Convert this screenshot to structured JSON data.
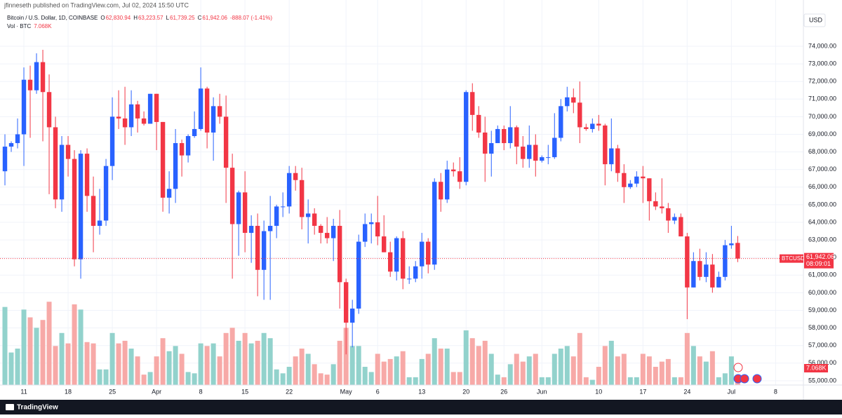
{
  "chart_data": {
    "type": "candlestick",
    "header": "jfinneseth published on TradingView.com, Jul 02, 2024 15:50 UTC",
    "legend": {
      "symbol": "Bitcoin / U.S. Dollar, 1D, COINBASE",
      "o": "O",
      "o_value": "62,830.94",
      "h": "H",
      "h_value": "63,223.57",
      "l": "L",
      "l_value": "61,739.25",
      "c": "C",
      "c_value": "61,942.06",
      "change": "-888.07 (-1.41%)",
      "vol": "Vol · BTC",
      "vol_value": "7.068K"
    },
    "currency": "USD",
    "price_tag": {
      "symbol": "BTCUSD",
      "price": "61,942.06",
      "countdown": "08:09:01"
    },
    "volume_tag": "7.068K",
    "brand": "TradingView",
    "up_color": "#2962ff",
    "down_color": "#f23645",
    "up_volume_color": "#92d2cc",
    "down_volume_color": "#f7a9a7",
    "grid": true,
    "xlim": [
      -0.78,
      126.4
    ],
    "ylim": [
      54757,
      76629
    ],
    "volume_lim": [
      0,
      90
    ],
    "last_price": 61942.06,
    "xticks": [
      {
        "value": 3,
        "label": "11"
      },
      {
        "value": 10,
        "label": "18"
      },
      {
        "value": 17,
        "label": "25"
      },
      {
        "value": 24,
        "label": "Apr"
      },
      {
        "value": 31,
        "label": "8"
      },
      {
        "value": 38,
        "label": "15"
      },
      {
        "value": 45,
        "label": "22"
      },
      {
        "value": 54,
        "label": "May"
      },
      {
        "value": 59,
        "label": "6"
      },
      {
        "value": 66,
        "label": "13"
      },
      {
        "value": 73,
        "label": "20"
      },
      {
        "value": 79,
        "label": "26"
      },
      {
        "value": 85,
        "label": "Jun"
      },
      {
        "value": 94,
        "label": "10"
      },
      {
        "value": 101,
        "label": "17"
      },
      {
        "value": 108,
        "label": "24"
      },
      {
        "value": 115,
        "label": "Jul"
      },
      {
        "value": 122,
        "label": "8"
      }
    ],
    "yticks": [
      {
        "value": 55000,
        "label": "55,000.00"
      },
      {
        "value": 56000,
        "label": "56,000.00"
      },
      {
        "value": 57000,
        "label": "57,000.00"
      },
      {
        "value": 58000,
        "label": "58,000.00"
      },
      {
        "value": 59000,
        "label": "59,000.00"
      },
      {
        "value": 60000,
        "label": "60,000.00"
      },
      {
        "value": 61000,
        "label": "61,000.00"
      },
      {
        "value": 62000,
        "label": "62,000.00"
      },
      {
        "value": 63000,
        "label": "63,000.00"
      },
      {
        "value": 64000,
        "label": "64,000.00"
      },
      {
        "value": 65000,
        "label": "65,000.00"
      },
      {
        "value": 66000,
        "label": "66,000.00"
      },
      {
        "value": 67000,
        "label": "67,000.00"
      },
      {
        "value": 68000,
        "label": "68,000.00"
      },
      {
        "value": 69000,
        "label": "69,000.00"
      },
      {
        "value": 70000,
        "label": "70,000.00"
      },
      {
        "value": 71000,
        "label": "71,000.00"
      },
      {
        "value": 72000,
        "label": "72,000.00"
      },
      {
        "value": 73000,
        "label": "73,000.00"
      },
      {
        "value": 74000,
        "label": "74,000.00"
      }
    ],
    "open": [
      66900,
      68300,
      68500,
      69000,
      72100,
      71500,
      73100,
      71400,
      69400,
      65300,
      68400,
      67600,
      61900,
      67900,
      65500,
      63800,
      64100,
      67200,
      70000,
      69900,
      69400,
      70700,
      69900,
      69600,
      71300,
      69700,
      65400,
      65900,
      68500,
      67800,
      68900,
      69300,
      71600,
      69100,
      70600,
      70000,
      67100,
      63900,
      65700,
      63400,
      63800,
      61300,
      63500,
      63800,
      64900,
      64900,
      66800,
      66400,
      64300,
      64500,
      63800,
      63400,
      63100,
      63800,
      60600,
      58300,
      59100,
      62900,
      63900,
      64000,
      63200,
      62300,
      61200,
      63100,
      60800,
      60800,
      61500,
      62900,
      61600,
      66300,
      65300,
      67000,
      66900,
      66300,
      71400,
      70100,
      69100,
      67900,
      68500,
      69300,
      68500,
      69400,
      68300,
      67600,
      68400,
      67500,
      67700,
      67700,
      68800,
      70600,
      71100,
      70800,
      69400,
      69300,
      69600,
      69500,
      67300,
      68200,
      66800,
      66000,
      66200,
      66600,
      66500,
      65200,
      64900,
      64800,
      64100,
      64300,
      63200,
      60300,
      61800,
      60900,
      61600,
      60300,
      60900,
      62700,
      62830.94
    ],
    "high": [
      69000,
      68600,
      69900,
      72800,
      72900,
      73600,
      73800,
      72400,
      70000,
      68900,
      68900,
      68100,
      68100,
      68200,
      66600,
      65900,
      67600,
      71100,
      71500,
      71700,
      71500,
      70900,
      70300,
      71300,
      71300,
      69700,
      66900,
      69300,
      68700,
      69000,
      70300,
      72800,
      71700,
      71100,
      71300,
      71200,
      67900,
      65800,
      66900,
      64400,
      64500,
      64100,
      65500,
      65000,
      65700,
      67200,
      67200,
      67100,
      65300,
      64800,
      63900,
      64300,
      64200,
      64700,
      60800,
      59600,
      63300,
      64500,
      64500,
      65500,
      64400,
      62900,
      63200,
      63500,
      61500,
      61800,
      63400,
      63100,
      66500,
      66800,
      67500,
      67400,
      67700,
      71500,
      71900,
      70600,
      70000,
      69200,
      69500,
      69500,
      70600,
      69500,
      68900,
      69500,
      69000,
      67800,
      68400,
      70200,
      71000,
      71700,
      71600,
      72000,
      69600,
      69900,
      70100,
      69600,
      69900,
      68400,
      67300,
      66400,
      66900,
      67200,
      66500,
      65700,
      66500,
      65100,
      64500,
      64500,
      63400,
      62300,
      62500,
      62300,
      62200,
      61200,
      63000,
      63800,
      63223.57
    ],
    "low": [
      66100,
      68000,
      68200,
      67200,
      68800,
      71300,
      68600,
      65600,
      64800,
      64600,
      66600,
      61500,
      60800,
      64600,
      62300,
      63300,
      63800,
      66400,
      69300,
      68400,
      68900,
      69100,
      69500,
      69600,
      68100,
      64600,
      64500,
      65100,
      66600,
      67400,
      68800,
      69200,
      68200,
      67500,
      69600,
      65100,
      60800,
      62100,
      62300,
      61700,
      59800,
      59600,
      59600,
      63100,
      64300,
      64500,
      65800,
      63600,
      62800,
      63300,
      62800,
      62800,
      61800,
      59100,
      56500,
      56900,
      58800,
      62600,
      62800,
      62700,
      62300,
      60900,
      60700,
      60200,
      60500,
      60600,
      60800,
      61100,
      61300,
      64600,
      65100,
      66600,
      65900,
      66100,
      69200,
      68800,
      66300,
      66600,
      68500,
      68100,
      68200,
      67300,
      67100,
      67100,
      66600,
      67400,
      67300,
      67600,
      68600,
      70300,
      70200,
      68500,
      69200,
      69100,
      69200,
      66100,
      66900,
      66300,
      65100,
      65900,
      66000,
      65100,
      64100,
      64700,
      64500,
      63400,
      63900,
      63200,
      58500,
      60300,
      60700,
      60600,
      60000,
      60300,
      60700,
      62500,
      61739.25
    ],
    "close": [
      68300,
      68500,
      69000,
      72100,
      71500,
      73100,
      71400,
      69400,
      65300,
      68400,
      67600,
      61900,
      67900,
      65500,
      63800,
      64100,
      67200,
      70000,
      69900,
      69400,
      70700,
      69900,
      69600,
      71300,
      69700,
      65400,
      65900,
      68500,
      67800,
      68900,
      69300,
      71600,
      69100,
      70600,
      70000,
      67100,
      63900,
      65700,
      63400,
      63800,
      61300,
      63500,
      63800,
      64900,
      64900,
      66800,
      66400,
      64300,
      64500,
      63800,
      63400,
      63100,
      63800,
      60600,
      58300,
      59100,
      62900,
      63900,
      64000,
      63200,
      62300,
      61200,
      63100,
      60800,
      60800,
      61500,
      62900,
      61600,
      66300,
      65300,
      67000,
      66900,
      66300,
      71400,
      70100,
      69100,
      67900,
      68500,
      69300,
      68500,
      69400,
      68300,
      67600,
      68400,
      67500,
      67700,
      67700,
      68800,
      70600,
      71100,
      70800,
      69400,
      69300,
      69600,
      69500,
      67300,
      68200,
      66800,
      66000,
      66200,
      66600,
      66500,
      65200,
      64900,
      64800,
      64100,
      64300,
      63200,
      60300,
      61800,
      60900,
      61600,
      60300,
      60900,
      62700,
      62800,
      61942.06
    ],
    "volume": [
      60,
      25,
      28,
      58,
      52,
      44,
      50,
      64,
      30,
      40,
      32,
      62,
      58,
      33,
      32,
      12,
      12,
      40,
      32,
      34,
      28,
      22,
      8,
      10,
      22,
      36,
      26,
      30,
      24,
      10,
      9,
      32,
      30,
      32,
      22,
      40,
      44,
      34,
      40,
      32,
      34,
      40,
      36,
      12,
      9,
      14,
      22,
      28,
      24,
      16,
      9,
      8,
      16,
      34,
      44,
      30,
      30,
      14,
      10,
      24,
      18,
      20,
      22,
      26,
      6,
      6,
      20,
      24,
      36,
      28,
      28,
      10,
      10,
      42,
      36,
      30,
      34,
      24,
      8,
      6,
      16,
      24,
      18,
      22,
      24,
      6,
      6,
      24,
      28,
      30,
      22,
      40,
      6,
      4,
      14,
      30,
      34,
      22,
      24,
      6,
      6,
      24,
      22,
      14,
      18,
      20,
      6,
      6,
      40,
      30,
      22,
      18,
      26,
      6,
      9,
      22,
      7.068
    ]
  }
}
